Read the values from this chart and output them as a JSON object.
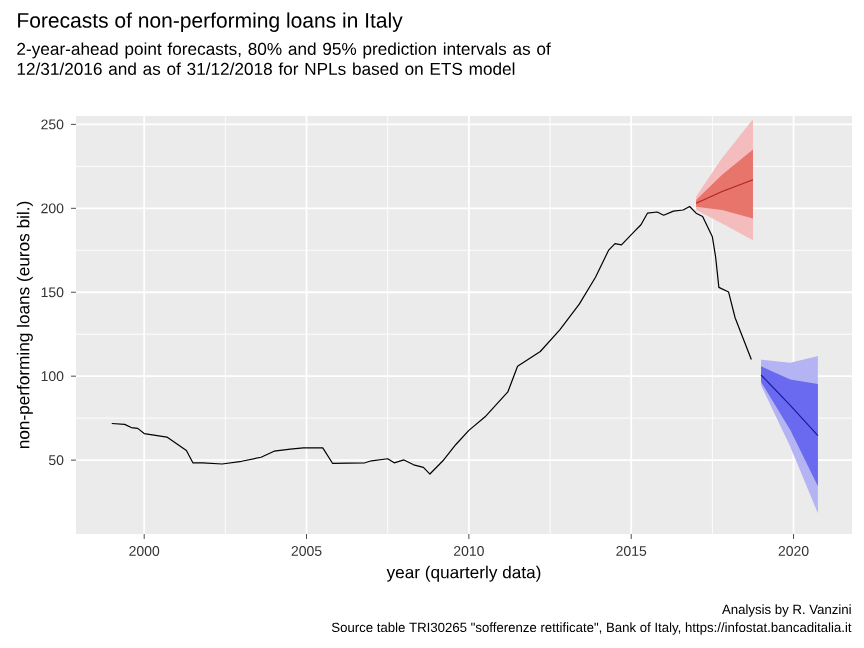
{
  "chart_data": {
    "type": "line",
    "title": "Forecasts of non-performing loans in Italy",
    "subtitle": "2-year-ahead point forecasts, 80% and 95% prediction intervals as of 12/31/2016 and as of 31/12/2018 for NPLs based on ETS model",
    "xlabel": "year (quarterly data)",
    "ylabel": "non-performing loans (euros bil.)",
    "annotations": [
      "Analysis by R. Vanzini",
      "Source table TRI30265 \"sofferenze rettificate\", Bank of Italy, https://infostat.bancaditalia.it"
    ],
    "xlim": [
      1997.9,
      2021.8
    ],
    "ylim": [
      6,
      255
    ],
    "xticks": [
      2000,
      2005,
      2010,
      2015,
      2020
    ],
    "yticks": [
      50,
      100,
      150,
      200,
      250
    ],
    "grid": true,
    "series": [
      {
        "color": "#000000",
        "x": [
          1999.0,
          1999.4,
          1999.6,
          1999.8,
          2000.0,
          2000.7,
          2001.0,
          2001.3,
          2001.5,
          2001.8,
          2002.4,
          2003.0,
          2003.6,
          2004.0,
          2004.5,
          2004.9,
          2005.5,
          2005.8,
          2006.8,
          2007.0,
          2007.5,
          2007.7,
          2008.0,
          2008.3,
          2008.6,
          2008.8,
          2009.2,
          2009.6,
          2010.0,
          2010.5,
          2011.2,
          2011.5,
          2012.2,
          2012.8,
          2013.4,
          2013.9,
          2014.3,
          2014.5,
          2014.7,
          2015.1,
          2015.3,
          2015.5,
          2015.8,
          2016.0,
          2016.3,
          2016.6,
          2016.8,
          2017.0,
          2017.2,
          2017.5,
          2017.6,
          2017.7,
          2018.0,
          2018.2,
          2018.4,
          2018.7
        ],
        "values": [
          71.8,
          71.3,
          69.4,
          68.9,
          65.8,
          63.7,
          59.8,
          55.7,
          48.4,
          48.4,
          47.7,
          49.3,
          51.7,
          55.3,
          56.5,
          57.3,
          57.3,
          48.1,
          48.4,
          49.6,
          50.8,
          48.4,
          50.1,
          47.2,
          45.7,
          41.7,
          49.6,
          59.3,
          67.7,
          75.8,
          90.6,
          105.9,
          114.7,
          127.6,
          142.9,
          158.9,
          174.9,
          179,
          178.2,
          186.3,
          190.2,
          197.1,
          197.8,
          195.9,
          198.3,
          199,
          201.1,
          197.1,
          195.1,
          183,
          171,
          152.9,
          150.1,
          134.8,
          124.8,
          109.9
        ]
      },
      {
        "color": "#f4bcbc",
        "x": [
          2017.0,
          2017.8,
          2018.75
        ],
        "values": [
          null,
          null,
          null
        ],
        "lower": [
          199,
          191,
          181
        ],
        "upper": [
          207,
          230,
          253
        ]
      },
      {
        "color": "#e8756c",
        "x": [
          2017.0,
          2017.8,
          2018.75
        ],
        "values": [
          null,
          null,
          null
        ],
        "lower": [
          201,
          199,
          194
        ],
        "upper": [
          205,
          220,
          235
        ]
      },
      {
        "color": "#b22222",
        "x": [
          2017.0,
          2017.8,
          2018.75
        ],
        "values": [
          203,
          210,
          217
        ]
      },
      {
        "color": "#b4b4f4",
        "x": [
          2019.0,
          2019.9,
          2020.75
        ],
        "values": [
          null,
          null,
          null
        ],
        "lower": [
          94.6,
          58,
          18.3
        ],
        "upper": [
          109.9,
          108,
          112
        ]
      },
      {
        "color": "#6a6af0",
        "x": [
          2019.0,
          2019.9,
          2020.75
        ],
        "values": [
          null,
          null,
          null
        ],
        "lower": [
          96.6,
          68,
          34.5
        ],
        "upper": [
          105.9,
          98,
          95.4
        ]
      },
      {
        "color": "#1a1aa0",
        "x": [
          2019.0,
          2019.9,
          2020.75
        ],
        "values": [
          100.7,
          82.6,
          64.6
        ]
      }
    ]
  }
}
